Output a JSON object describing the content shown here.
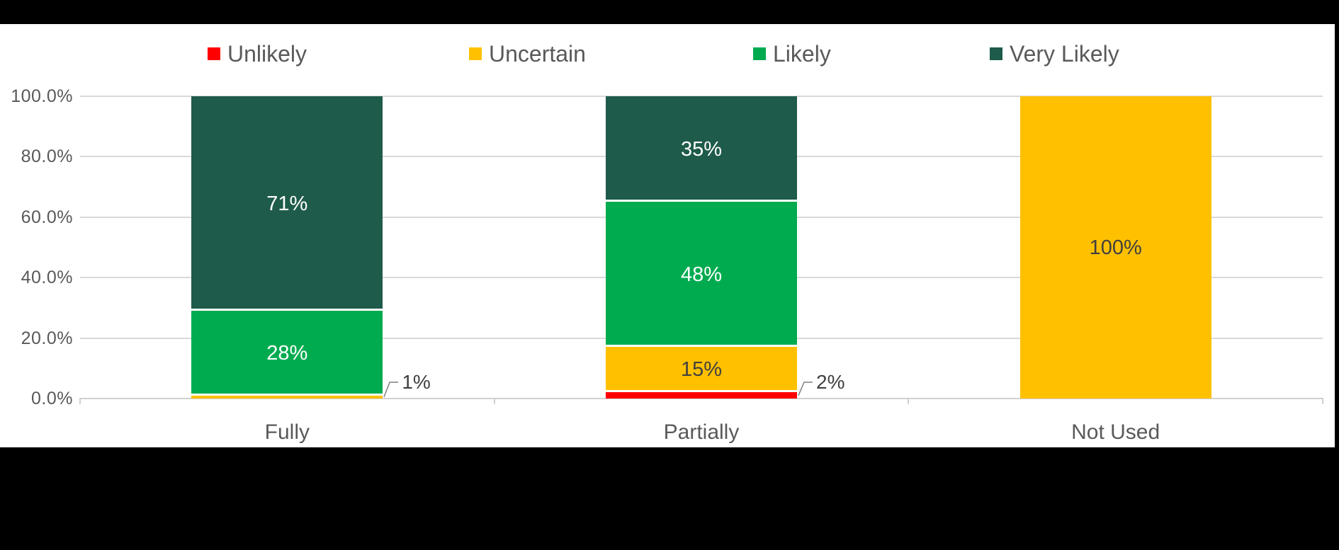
{
  "chart_data": {
    "type": "bar",
    "stacked": true,
    "percent_axis": true,
    "categories": [
      "Fully",
      "Partially",
      "Not Used"
    ],
    "series": [
      {
        "name": "Unlikely",
        "color": "#FF0000",
        "values": [
          0,
          2,
          0
        ]
      },
      {
        "name": "Uncertain",
        "color": "#FFC000",
        "values": [
          1,
          15,
          100
        ]
      },
      {
        "name": "Likely",
        "color": "#00AB50",
        "values": [
          28,
          48,
          0
        ]
      },
      {
        "name": "Very Likely",
        "color": "#1E5B4A",
        "values": [
          71,
          35,
          0
        ]
      }
    ],
    "bar_value_labels": {
      "Fully": {
        "Uncertain": "1%",
        "Likely": "28%",
        "Very Likely": "71%"
      },
      "Partially": {
        "Unlikely": "2%",
        "Uncertain": "15%",
        "Likely": "48%",
        "Very Likely": "35%"
      },
      "Not Used": {
        "Uncertain": "100%"
      }
    },
    "y_tick_labels": [
      "100.0%",
      "80.0%",
      "60.0%",
      "40.0%",
      "20.0%",
      "0.0%"
    ],
    "ylim": [
      0,
      100
    ],
    "legend_position": "top",
    "legend_entries": [
      "Unlikely",
      "Uncertain",
      "Likely",
      "Very Likely"
    ],
    "grid": "horizontal",
    "value_label_suffix": "%",
    "title": "",
    "xlabel": "",
    "ylabel": ""
  },
  "colors": {
    "background": "#000000",
    "panel": "#FFFFFF",
    "gridline": "#D9D9D9",
    "axis_text": "#595959",
    "label_on_dark_segment": "#FFFFFF",
    "label_on_light_segment": "#404040",
    "leader_line": "#7F7F7F"
  }
}
